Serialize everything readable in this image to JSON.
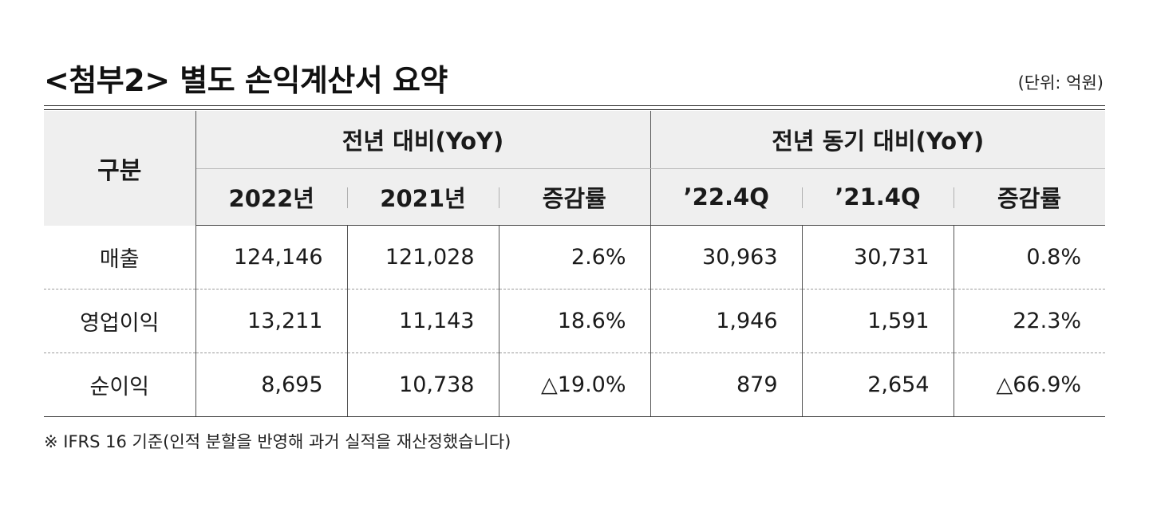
{
  "title": "<첨부2> 별도 손익계산서 요약",
  "unit": "(단위: 억원)",
  "table": {
    "row_header": "구분",
    "groups": [
      "전년 대비(YoY)",
      "전년 동기 대비(YoY)"
    ],
    "columns": [
      "2022년",
      "2021년",
      "증감률",
      "’22.4Q",
      "’21.4Q",
      "증감률"
    ],
    "rows": [
      {
        "label": "매출",
        "values": [
          "124,146",
          "121,028",
          "2.6%",
          "30,963",
          "30,731",
          "0.8%"
        ]
      },
      {
        "label": "영업이익",
        "values": [
          "13,211",
          "11,143",
          "18.6%",
          "1,946",
          "1,591",
          "22.3%"
        ]
      },
      {
        "label": "순이익",
        "values": [
          "8,695",
          "10,738",
          "△19.0%",
          "879",
          "2,654",
          "△66.9%"
        ]
      }
    ]
  },
  "footnote": "※ IFRS 16 기준(인적 분할을 반영해 과거 실적을 재산정했습니다)"
}
